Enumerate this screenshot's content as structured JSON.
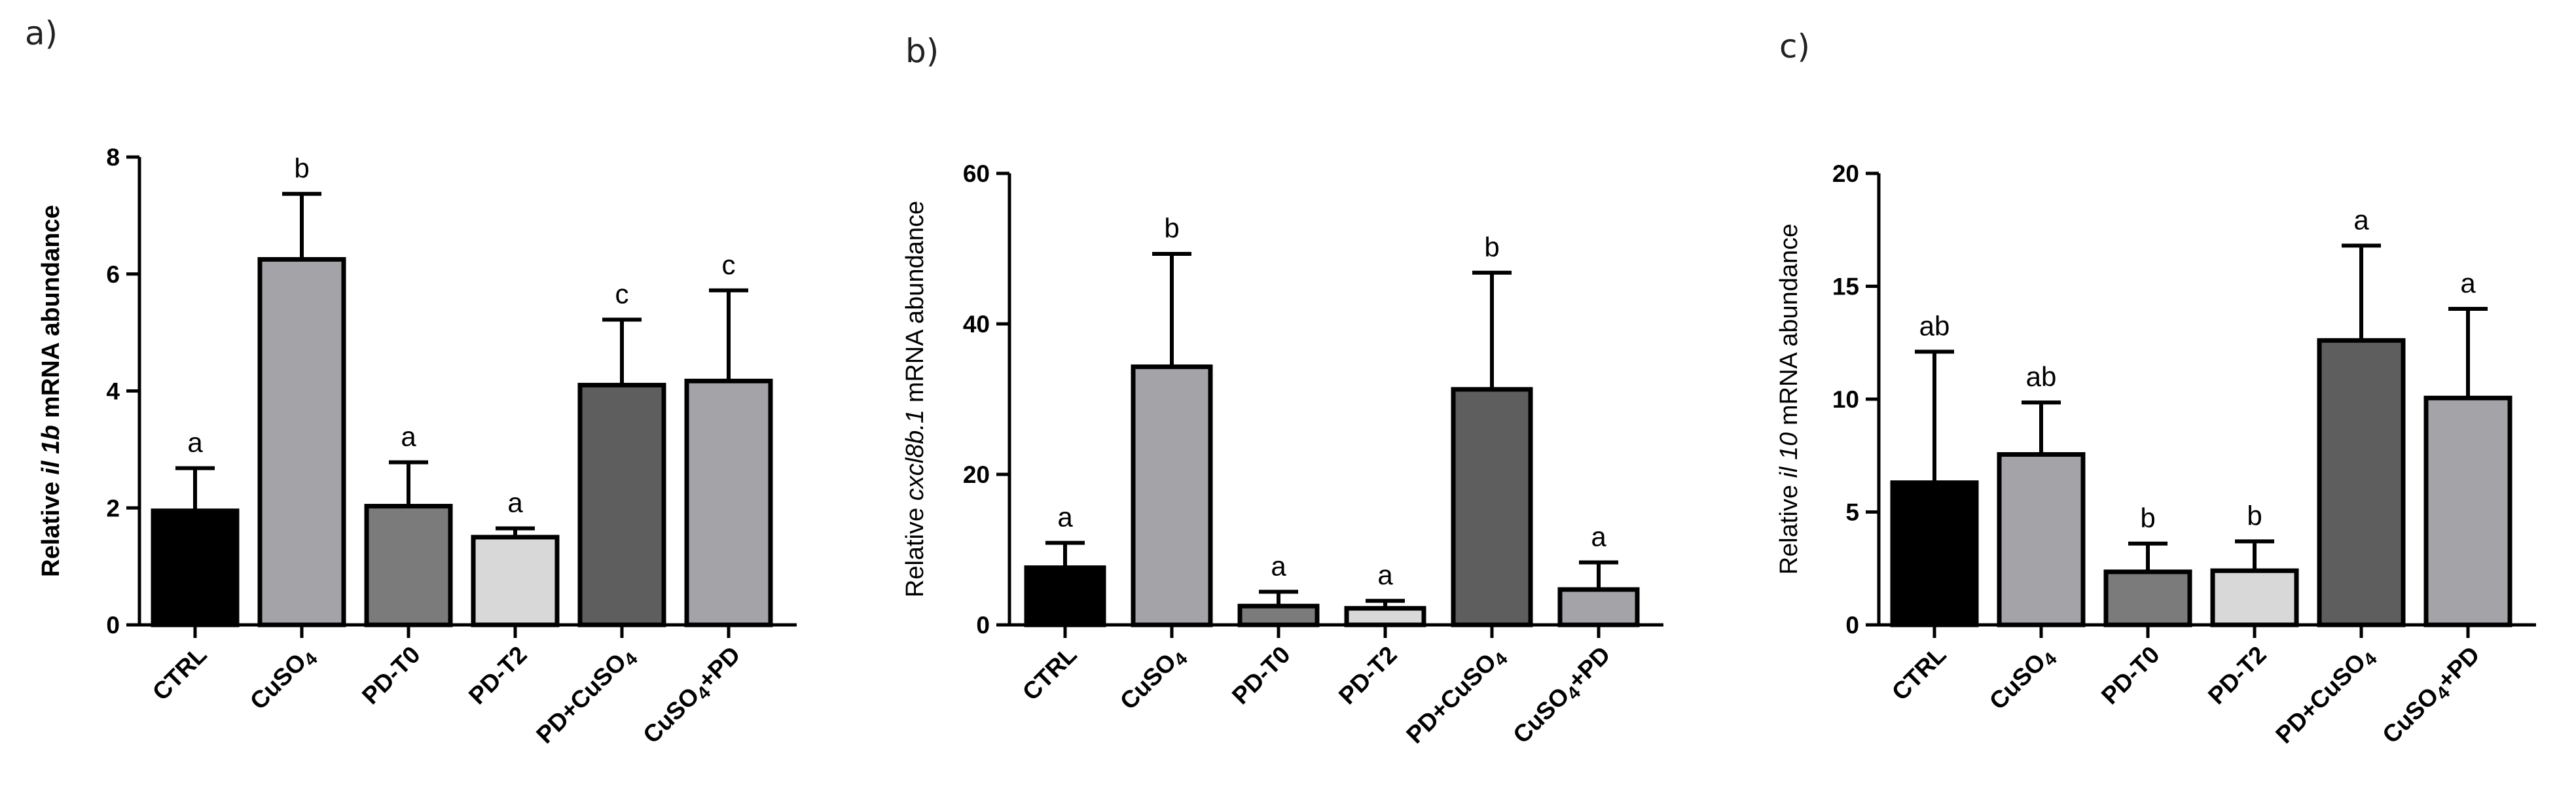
{
  "chart_data": [
    {
      "type": "bar",
      "panel": "a)",
      "ylabel": {
        "pre": "Relative ",
        "gene": "il 1b",
        "post": " mRNA abundance",
        "bold": true
      },
      "ylim": [
        0,
        8
      ],
      "yticks": [
        "0",
        "2",
        "4",
        "6",
        "8"
      ],
      "categories": [
        "CTRL",
        "CuSO4",
        "PD-T0",
        "PD-T2",
        "PD+CuSO4",
        "CuSO4+PD"
      ],
      "values": [
        1.95,
        6.25,
        2.03,
        1.5,
        4.1,
        4.17
      ],
      "errors": [
        0.73,
        1.12,
        0.75,
        0.15,
        1.12,
        1.55
      ],
      "significance": [
        "a",
        "b",
        "a",
        "a",
        "c",
        "c"
      ],
      "colors": [
        "#000000",
        "#a3a3a8",
        "#7b7b7b",
        "#d8d8d8",
        "#5e5e5e",
        "#a3a3a8"
      ]
    },
    {
      "type": "bar",
      "panel": "b)",
      "ylabel": {
        "pre": "Relative ",
        "gene": "cxcl8b.1",
        "post": "  mRNA abundance",
        "bold": false
      },
      "ylim": [
        0,
        60
      ],
      "yticks": [
        "0",
        "20",
        "40",
        "60"
      ],
      "categories": [
        "CTRL",
        "CuSO4",
        "PD-T0",
        "PD-T2",
        "PD+CuSO4",
        "CuSO4+PD"
      ],
      "values": [
        7.6,
        34.3,
        2.5,
        2.2,
        31.3,
        4.7
      ],
      "errors": [
        3.3,
        15.0,
        1.9,
        1.0,
        15.5,
        3.6
      ],
      "significance": [
        "a",
        "b",
        "a",
        "a",
        "b",
        "a"
      ],
      "colors": [
        "#000000",
        "#a3a3a8",
        "#7b7b7b",
        "#d8d8d8",
        "#5e5e5e",
        "#a3a3a8"
      ]
    },
    {
      "type": "bar",
      "panel": "c)",
      "ylabel": {
        "pre": "Relative ",
        "gene": "il 10",
        "post": " mRNA abundance",
        "bold": false
      },
      "ylim": [
        0,
        20
      ],
      "yticks": [
        "0",
        "5",
        "10",
        "15",
        "20"
      ],
      "categories": [
        "CTRL",
        "CuSO4",
        "PD-T0",
        "PD-T2",
        "PD+CuSO4",
        "CuSO4+PD"
      ],
      "values": [
        6.3,
        7.55,
        2.35,
        2.4,
        12.6,
        10.05
      ],
      "errors": [
        5.8,
        2.3,
        1.25,
        1.3,
        4.2,
        3.95
      ],
      "significance": [
        "ab",
        "ab",
        "b",
        "b",
        "a",
        "a"
      ],
      "colors": [
        "#000000",
        "#a3a3a8",
        "#7b7b7b",
        "#d8d8d8",
        "#5e5e5e",
        "#a3a3a8"
      ]
    }
  ]
}
